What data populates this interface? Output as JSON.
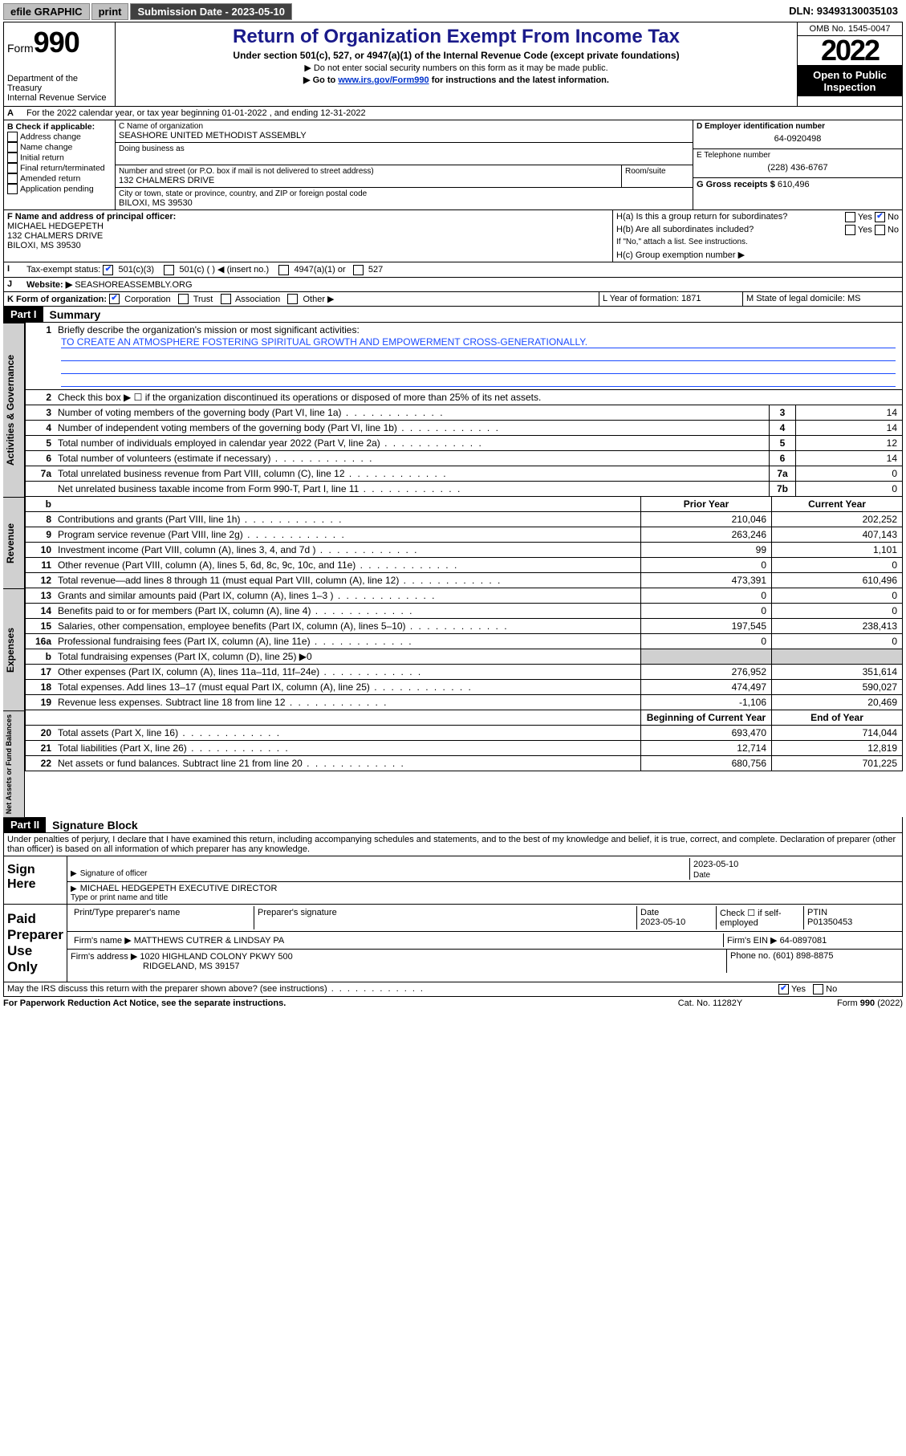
{
  "topbar": {
    "efile": "efile GRAPHIC",
    "print": "print",
    "subdate_lbl": "Submission Date - 2023-05-10",
    "dln_lbl": "DLN: 93493130035103"
  },
  "header": {
    "form_word": "Form",
    "form_num": "990",
    "dept": "Department of the Treasury",
    "irs": "Internal Revenue Service",
    "title": "Return of Organization Exempt From Income Tax",
    "subtitle": "Under section 501(c), 527, or 4947(a)(1) of the Internal Revenue Code (except private foundations)",
    "note1": "▶ Do not enter social security numbers on this form as it may be made public.",
    "note2_pre": "▶ Go to ",
    "note2_link": "www.irs.gov/Form990",
    "note2_post": " for instructions and the latest information.",
    "omb": "OMB No. 1545-0047",
    "year": "2022",
    "inspection": "Open to Public Inspection"
  },
  "A": {
    "text": "For the 2022 calendar year, or tax year beginning 01-01-2022   , and ending 12-31-2022"
  },
  "B": {
    "label": "B Check if applicable:",
    "opts": [
      "Address change",
      "Name change",
      "Initial return",
      "Final return/terminated",
      "Amended return",
      "Application pending"
    ]
  },
  "C": {
    "name_lbl": "C Name of organization",
    "name": "SEASHORE UNITED METHODIST ASSEMBLY",
    "dba_lbl": "Doing business as",
    "addr_lbl": "Number and street (or P.O. box if mail is not delivered to street address)",
    "room_lbl": "Room/suite",
    "addr": "132 CHALMERS DRIVE",
    "city_lbl": "City or town, state or province, country, and ZIP or foreign postal code",
    "city": "BILOXI, MS  39530"
  },
  "D": {
    "lbl": "D Employer identification number",
    "val": "64-0920498"
  },
  "E": {
    "lbl": "E Telephone number",
    "val": "(228) 436-6767"
  },
  "G": {
    "lbl": "G Gross receipts $",
    "val": "610,496"
  },
  "F": {
    "lbl": "F  Name and address of principal officer:",
    "name": "MICHAEL HEDGEPETH",
    "addr1": "132 CHALMERS DRIVE",
    "addr2": "BILOXI, MS  39530"
  },
  "H": {
    "a_lbl": "H(a)  Is this a group return for subordinates?",
    "b_lbl": "H(b)  Are all subordinates included?",
    "b_note": "If \"No,\" attach a list. See instructions.",
    "c_lbl": "H(c)  Group exemption number ▶",
    "yes": "Yes",
    "no": "No"
  },
  "I": {
    "lbl": "Tax-exempt status:",
    "o1": "501(c)(3)",
    "o2": "501(c) (  ) ◀ (insert no.)",
    "o3": "4947(a)(1) or",
    "o4": "527"
  },
  "J": {
    "lbl": "Website: ▶",
    "val": "SEASHOREASSEMBLY.ORG"
  },
  "K": {
    "lbl": "K Form of organization:",
    "o1": "Corporation",
    "o2": "Trust",
    "o3": "Association",
    "o4": "Other ▶"
  },
  "L": {
    "lbl": "L Year of formation: 1871"
  },
  "M": {
    "lbl": "M State of legal domicile: MS"
  },
  "part1": {
    "hdr": "Part I",
    "title": "Summary"
  },
  "summary": {
    "l1_lbl": "Briefly describe the organization's mission or most significant activities:",
    "l1_val": "TO CREATE AN ATMOSPHERE FOSTERING SPIRITUAL GROWTH AND EMPOWERMENT CROSS-GENERATIONALLY.",
    "l2": "Check this box ▶ ☐  if the organization discontinued its operations or disposed of more than 25% of its net assets.",
    "rows_gov": [
      {
        "n": "3",
        "t": "Number of voting members of the governing body (Part VI, line 1a)",
        "box": "3",
        "v": "14"
      },
      {
        "n": "4",
        "t": "Number of independent voting members of the governing body (Part VI, line 1b)",
        "box": "4",
        "v": "14"
      },
      {
        "n": "5",
        "t": "Total number of individuals employed in calendar year 2022 (Part V, line 2a)",
        "box": "5",
        "v": "12"
      },
      {
        "n": "6",
        "t": "Total number of volunteers (estimate if necessary)",
        "box": "6",
        "v": "14"
      },
      {
        "n": "7a",
        "t": "Total unrelated business revenue from Part VIII, column (C), line 12",
        "box": "7a",
        "v": "0"
      },
      {
        "n": "",
        "t": "Net unrelated business taxable income from Form 990-T, Part I, line 11",
        "box": "7b",
        "v": "0"
      }
    ],
    "colhdr_b": "b",
    "colhdr_prior": "Prior Year",
    "colhdr_curr": "Current Year",
    "rows_rev": [
      {
        "n": "8",
        "t": "Contributions and grants (Part VIII, line 1h)",
        "p": "210,046",
        "c": "202,252"
      },
      {
        "n": "9",
        "t": "Program service revenue (Part VIII, line 2g)",
        "p": "263,246",
        "c": "407,143"
      },
      {
        "n": "10",
        "t": "Investment income (Part VIII, column (A), lines 3, 4, and 7d )",
        "p": "99",
        "c": "1,101"
      },
      {
        "n": "11",
        "t": "Other revenue (Part VIII, column (A), lines 5, 6d, 8c, 9c, 10c, and 11e)",
        "p": "0",
        "c": "0"
      },
      {
        "n": "12",
        "t": "Total revenue—add lines 8 through 11 (must equal Part VIII, column (A), line 12)",
        "p": "473,391",
        "c": "610,496"
      }
    ],
    "rows_exp": [
      {
        "n": "13",
        "t": "Grants and similar amounts paid (Part IX, column (A), lines 1–3 )",
        "p": "0",
        "c": "0"
      },
      {
        "n": "14",
        "t": "Benefits paid to or for members (Part IX, column (A), line 4)",
        "p": "0",
        "c": "0"
      },
      {
        "n": "15",
        "t": "Salaries, other compensation, employee benefits (Part IX, column (A), lines 5–10)",
        "p": "197,545",
        "c": "238,413"
      },
      {
        "n": "16a",
        "t": "Professional fundraising fees (Part IX, column (A), line 11e)",
        "p": "0",
        "c": "0"
      }
    ],
    "row16b": {
      "n": "b",
      "t": "Total fundraising expenses (Part IX, column (D), line 25) ▶0"
    },
    "rows_exp2": [
      {
        "n": "17",
        "t": "Other expenses (Part IX, column (A), lines 11a–11d, 11f–24e)",
        "p": "276,952",
        "c": "351,614"
      },
      {
        "n": "18",
        "t": "Total expenses. Add lines 13–17 (must equal Part IX, column (A), line 25)",
        "p": "474,497",
        "c": "590,027"
      },
      {
        "n": "19",
        "t": "Revenue less expenses. Subtract line 18 from line 12",
        "p": "-1,106",
        "c": "20,469"
      }
    ],
    "colhdr_beg": "Beginning of Current Year",
    "colhdr_end": "End of Year",
    "rows_na": [
      {
        "n": "20",
        "t": "Total assets (Part X, line 16)",
        "p": "693,470",
        "c": "714,044"
      },
      {
        "n": "21",
        "t": "Total liabilities (Part X, line 26)",
        "p": "12,714",
        "c": "12,819"
      },
      {
        "n": "22",
        "t": "Net assets or fund balances. Subtract line 21 from line 20",
        "p": "680,756",
        "c": "701,225"
      }
    ]
  },
  "vtabs": {
    "gov": "Activities & Governance",
    "rev": "Revenue",
    "exp": "Expenses",
    "na": "Net Assets or Fund Balances"
  },
  "part2": {
    "hdr": "Part II",
    "title": "Signature Block"
  },
  "penalties": "Under penalties of perjury, I declare that I have examined this return, including accompanying schedules and statements, and to the best of my knowledge and belief, it is true, correct, and complete. Declaration of preparer (other than officer) is based on all information of which preparer has any knowledge.",
  "sign": {
    "here": "Sign Here",
    "sig_lbl": "Signature of officer",
    "date_lbl": "Date",
    "date": "2023-05-10",
    "name": "MICHAEL HEDGEPETH  EXECUTIVE DIRECTOR",
    "name_lbl": "Type or print name and title"
  },
  "paid": {
    "lbl": "Paid Preparer Use Only",
    "c1": "Print/Type preparer's name",
    "c2": "Preparer's signature",
    "c3": "Date",
    "c3v": "2023-05-10",
    "c4": "Check ☐ if self-employed",
    "c5": "PTIN",
    "c5v": "P01350453",
    "firm_lbl": "Firm's name    ▶",
    "firm": "MATTHEWS CUTRER & LINDSAY PA",
    "ein_lbl": "Firm's EIN ▶",
    "ein": "64-0897081",
    "addr_lbl": "Firm's address ▶",
    "addr1": "1020 HIGHLAND COLONY PKWY 500",
    "addr2": "RIDGELAND, MS  39157",
    "phone_lbl": "Phone no.",
    "phone": "(601) 898-8875"
  },
  "footer": {
    "discuss": "May the IRS discuss this return with the preparer shown above? (see instructions)",
    "yes": "Yes",
    "no": "No",
    "pra": "For Paperwork Reduction Act Notice, see the separate instructions.",
    "cat": "Cat. No. 11282Y",
    "form": "Form 990 (2022)"
  }
}
